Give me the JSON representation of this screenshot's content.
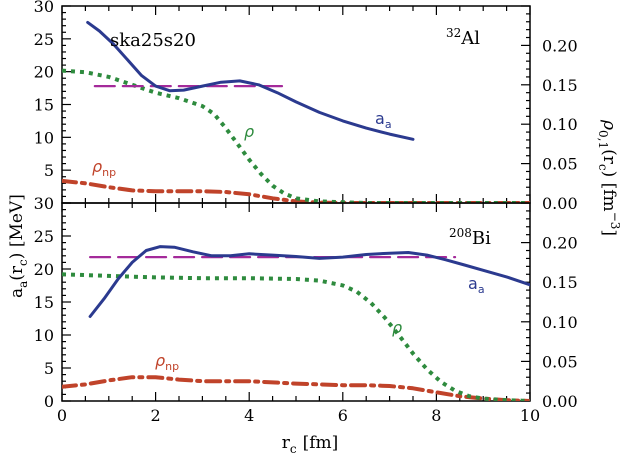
{
  "figure": {
    "xlabel": "r",
    "xlabel_sub": "c",
    "xlabel_unit": "[fm]",
    "ylabel_left": "a",
    "ylabel_left_sub1": "a",
    "ylabel_left_mid": "(r",
    "ylabel_left_sub2": "c",
    "ylabel_left_end": ")  [MeV]",
    "ylabel_right": "ρ",
    "ylabel_right_sub1": "0,1",
    "ylabel_right_mid": "(r",
    "ylabel_right_sub2": "c",
    "ylabel_right_end": ")  [fm",
    "ylabel_right_sup": "−3",
    "ylabel_right_close": "]",
    "colors": {
      "aa": "#2b3a8f",
      "rho": "#2e8b3e",
      "rhonp": "#c0432a",
      "const": "#a42a9a"
    }
  },
  "chart_data": [
    {
      "type": "line",
      "panel": "top",
      "title": "ska25s20",
      "nucleus_mass": "32",
      "nucleus_symbol": "Al",
      "xlim": [
        0,
        10
      ],
      "ylim_left": [
        0,
        30
      ],
      "ylim_right": [
        0,
        0.25
      ],
      "x_ticks": [
        0,
        2,
        4,
        6,
        8,
        10
      ],
      "left_ticks": [
        "5",
        "10",
        "15",
        "20",
        "25",
        "30"
      ],
      "right_ticks": [
        "0.00",
        "0.05",
        "0.10",
        "0.15",
        "0.20"
      ],
      "series": [
        {
          "name": "a",
          "name_sub": "a",
          "axis": "left",
          "x": [
            0.55,
            0.8,
            1.1,
            1.4,
            1.7,
            2.0,
            2.3,
            2.6,
            3.0,
            3.4,
            3.8,
            4.2,
            4.6,
            5.0,
            5.5,
            6.0,
            6.5,
            7.0,
            7.5
          ],
          "y": [
            27.5,
            26.2,
            24.2,
            21.8,
            19.4,
            17.8,
            17.1,
            17.2,
            17.8,
            18.4,
            18.6,
            18.0,
            16.8,
            15.4,
            13.8,
            12.5,
            11.4,
            10.5,
            9.7
          ]
        },
        {
          "name": "ρ",
          "axis": "right",
          "x": [
            0,
            0.5,
            1.0,
            1.5,
            2.0,
            2.5,
            3.0,
            3.25,
            3.5,
            3.75,
            4.0,
            4.25,
            4.5,
            4.75,
            5.0,
            5.5,
            6.0,
            6.5,
            7.0,
            8.0,
            9.0,
            10.0
          ],
          "y": [
            0.168,
            0.166,
            0.16,
            0.15,
            0.14,
            0.133,
            0.123,
            0.113,
            0.095,
            0.075,
            0.055,
            0.037,
            0.022,
            0.012,
            0.006,
            0.002,
            0.001,
            0.0,
            0.0,
            0.0,
            0.0,
            0.0
          ]
        },
        {
          "name": "ρ",
          "name_sub": "np",
          "axis": "right",
          "x": [
            0,
            0.5,
            1.0,
            1.5,
            2.0,
            2.5,
            3.0,
            3.5,
            4.0,
            4.5,
            5.0,
            5.5,
            6.0,
            7.0,
            8.0,
            9.0,
            10.0
          ],
          "y": [
            0.028,
            0.025,
            0.02,
            0.016,
            0.015,
            0.015,
            0.015,
            0.014,
            0.011,
            0.006,
            0.002,
            0.0005,
            0.0,
            0.0,
            0.0,
            0.0,
            0.0
          ]
        },
        {
          "name": "",
          "axis": "left",
          "x": [
            0.7,
            4.7
          ],
          "y": [
            17.8,
            17.8
          ]
        }
      ]
    },
    {
      "type": "line",
      "panel": "bottom",
      "nucleus_mass": "208",
      "nucleus_symbol": "Bi",
      "xlim": [
        0,
        10
      ],
      "ylim_left": [
        0,
        30
      ],
      "ylim_right": [
        0,
        0.25
      ],
      "x_ticks": [
        0,
        2,
        4,
        6,
        8,
        10
      ],
      "left_ticks": [
        "0",
        "5",
        "10",
        "15",
        "20",
        "25",
        "30"
      ],
      "right_ticks": [
        "0.00",
        "0.05",
        "0.10",
        "0.15",
        "0.20"
      ],
      "series": [
        {
          "name": "a",
          "name_sub": "a",
          "axis": "left",
          "x": [
            0.6,
            0.9,
            1.2,
            1.5,
            1.8,
            2.1,
            2.4,
            2.8,
            3.2,
            3.6,
            4.0,
            4.5,
            5.0,
            5.5,
            6.0,
            6.5,
            7.0,
            7.4,
            7.8,
            8.2,
            8.6,
            9.0,
            9.5,
            10.0
          ],
          "y": [
            12.8,
            15.5,
            18.5,
            21.0,
            22.8,
            23.4,
            23.3,
            22.6,
            22.0,
            22.0,
            22.3,
            22.1,
            21.9,
            21.6,
            21.8,
            22.2,
            22.4,
            22.5,
            22.1,
            21.4,
            20.6,
            19.8,
            18.8,
            17.6
          ]
        },
        {
          "name": "ρ",
          "axis": "right",
          "x": [
            0,
            1.0,
            2.0,
            3.0,
            4.0,
            5.0,
            5.5,
            6.0,
            6.3,
            6.6,
            6.9,
            7.2,
            7.5,
            7.8,
            8.1,
            8.4,
            8.7,
            9.0,
            9.5,
            10.0
          ],
          "y": [
            0.16,
            0.158,
            0.156,
            0.155,
            0.155,
            0.154,
            0.152,
            0.146,
            0.138,
            0.124,
            0.105,
            0.083,
            0.06,
            0.04,
            0.024,
            0.013,
            0.006,
            0.003,
            0.001,
            0.0
          ]
        },
        {
          "name": "ρ",
          "name_sub": "np",
          "axis": "right",
          "x": [
            0,
            0.5,
            1.0,
            1.5,
            2.0,
            2.5,
            3.0,
            3.5,
            4.0,
            5.0,
            6.0,
            6.5,
            7.0,
            7.5,
            8.0,
            8.5,
            9.0,
            9.5,
            10.0
          ],
          "y": [
            0.018,
            0.021,
            0.026,
            0.03,
            0.03,
            0.027,
            0.025,
            0.025,
            0.025,
            0.022,
            0.02,
            0.02,
            0.019,
            0.016,
            0.011,
            0.006,
            0.003,
            0.001,
            0.0
          ]
        },
        {
          "name": "",
          "axis": "left",
          "x": [
            0.6,
            8.4
          ],
          "y": [
            21.8,
            21.8
          ]
        }
      ]
    }
  ]
}
